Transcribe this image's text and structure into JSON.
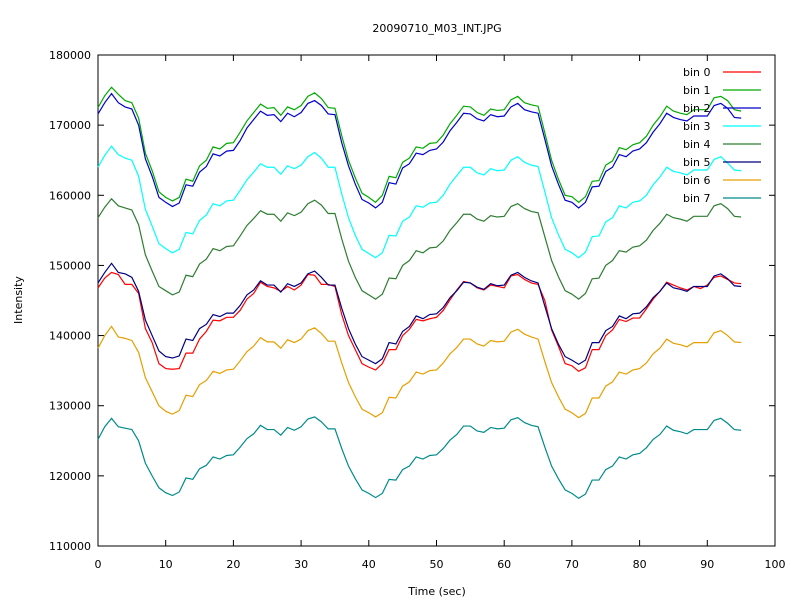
{
  "chart_data": {
    "type": "line",
    "title": "20090710_M03_INT.JPG",
    "xlabel": "Time (sec)",
    "ylabel": "Intensity",
    "xlim": [
      0,
      100
    ],
    "ylim": [
      110000,
      180000
    ],
    "x_ticks": [
      "0",
      "10",
      "20",
      "30",
      "40",
      "50",
      "60",
      "70",
      "80",
      "90",
      "100"
    ],
    "y_ticks": [
      "110000",
      "120000",
      "130000",
      "140000",
      "150000",
      "160000",
      "170000",
      "180000"
    ],
    "grid": false,
    "legend_position": "top-right",
    "x": [
      0,
      1,
      2,
      3,
      4,
      5,
      6,
      7,
      8,
      9,
      10,
      11,
      12,
      13,
      14,
      15,
      16,
      17,
      18,
      19,
      20,
      21,
      22,
      23,
      24,
      25,
      26,
      27,
      28,
      29,
      30,
      31,
      32,
      33,
      34,
      35,
      36,
      37,
      38,
      39,
      40,
      41,
      42,
      43,
      44,
      45,
      46,
      47,
      48,
      49,
      50,
      51,
      52,
      53,
      54,
      55,
      56,
      57,
      58,
      59,
      60,
      61,
      62,
      63,
      64,
      65,
      66,
      67,
      68,
      69,
      70,
      71,
      72,
      73,
      74,
      75,
      76,
      77,
      78,
      79,
      80,
      81,
      82,
      83,
      84,
      85,
      86,
      87,
      88,
      89,
      90,
      91,
      92,
      93,
      94,
      95
    ],
    "series": [
      {
        "name": "bin 0",
        "color": "#ff0000",
        "values": [
          146800,
          148200,
          149000,
          148700,
          147300,
          147300,
          146000,
          141000,
          139000,
          136000,
          135300,
          135200,
          135300,
          137500,
          137500,
          139500,
          140600,
          142200,
          142100,
          142600,
          142600,
          143600,
          145200,
          146000,
          147600,
          147000,
          146800,
          146300,
          147000,
          146500,
          147200,
          148700,
          148600,
          147300,
          147300,
          147000,
          143000,
          140000,
          138000,
          136000,
          135500,
          135100,
          136000,
          138000,
          138000,
          140000,
          140900,
          142300,
          142100,
          142400,
          142600,
          143600,
          145100,
          146500,
          147700,
          147500,
          146800,
          146500,
          147200,
          147000,
          146800,
          148500,
          148700,
          148000,
          147500,
          147300,
          145000,
          140800,
          138500,
          136000,
          135700,
          134900,
          135400,
          138000,
          138000,
          140000,
          140800,
          142300,
          142000,
          142500,
          142500,
          143800,
          145200,
          146300,
          147600,
          147200,
          146800,
          146500,
          147000,
          146700,
          147200,
          148300,
          148500,
          148000,
          147500,
          147400
        ]
      },
      {
        "name": "bin 1",
        "color": "#00aa00",
        "values": [
          172500,
          174200,
          175400,
          174400,
          173500,
          173200,
          171000,
          166000,
          163500,
          160500,
          159700,
          159200,
          159700,
          162300,
          162000,
          164200,
          165000,
          166900,
          166600,
          167400,
          167500,
          169000,
          170600,
          171800,
          173000,
          172400,
          172500,
          171400,
          172600,
          172200,
          172800,
          174100,
          174600,
          173800,
          172500,
          172400,
          168500,
          165000,
          162500,
          160300,
          159700,
          159000,
          160000,
          162700,
          162500,
          164700,
          165300,
          166900,
          166700,
          167400,
          167500,
          168600,
          170200,
          171400,
          172700,
          172600,
          171800,
          171400,
          172300,
          172100,
          172200,
          173600,
          174100,
          173200,
          172900,
          172700,
          168900,
          165000,
          162300,
          160000,
          159800,
          159000,
          159800,
          162000,
          162100,
          164300,
          164900,
          166800,
          166500,
          167200,
          167500,
          168400,
          170000,
          171200,
          172700,
          172000,
          171700,
          171500,
          172200,
          172200,
          172200,
          173900,
          174100,
          173500,
          172200,
          172000
        ]
      },
      {
        "name": "bin 2",
        "color": "#0000cc",
        "values": [
          171600,
          173200,
          174500,
          173200,
          172600,
          172300,
          170000,
          165200,
          162700,
          159700,
          159000,
          158400,
          158900,
          161500,
          161300,
          163300,
          164100,
          165900,
          165600,
          166300,
          166400,
          167800,
          169600,
          170800,
          172000,
          171400,
          171500,
          170500,
          171700,
          171200,
          171800,
          173100,
          173500,
          172800,
          171600,
          171500,
          167500,
          164200,
          161600,
          159400,
          158900,
          158200,
          159000,
          161800,
          161600,
          163900,
          164500,
          166000,
          165800,
          166400,
          166600,
          167600,
          169200,
          170400,
          171700,
          171600,
          170900,
          170600,
          171500,
          171200,
          171300,
          172600,
          173100,
          172200,
          171900,
          171700,
          168000,
          164200,
          161600,
          159300,
          159000,
          158200,
          159000,
          161200,
          161300,
          163400,
          164000,
          165800,
          165500,
          166300,
          166600,
          167500,
          169000,
          170200,
          171700,
          171100,
          170800,
          170600,
          171300,
          171300,
          171300,
          172800,
          173100,
          172400,
          171100,
          171000
        ]
      },
      {
        "name": "bin 3",
        "color": "#00ffff",
        "values": [
          164000,
          165700,
          167000,
          165800,
          165300,
          165000,
          162700,
          158000,
          155600,
          153100,
          152400,
          151800,
          152300,
          154700,
          154500,
          156400,
          157200,
          158800,
          158500,
          159200,
          159300,
          160700,
          162200,
          163300,
          164500,
          164000,
          164000,
          163000,
          164200,
          163800,
          164300,
          165500,
          166100,
          165300,
          164000,
          164000,
          160200,
          156800,
          154300,
          152300,
          151700,
          151100,
          151800,
          154300,
          154200,
          156300,
          156900,
          158500,
          158300,
          158900,
          159000,
          160000,
          161600,
          162800,
          164000,
          164000,
          163200,
          162900,
          163800,
          163500,
          163600,
          165000,
          165500,
          164700,
          164300,
          164100,
          160500,
          156800,
          154400,
          152300,
          151800,
          151100,
          151900,
          154100,
          154200,
          156200,
          156800,
          158500,
          158200,
          159000,
          159200,
          160000,
          161500,
          162600,
          164000,
          163400,
          163200,
          162900,
          163600,
          163600,
          163600,
          165100,
          165500,
          164600,
          163600,
          163500
        ]
      },
      {
        "name": "bin 4",
        "color": "#2e7d32",
        "values": [
          156800,
          158300,
          159500,
          158500,
          158200,
          157900,
          155800,
          151500,
          149200,
          147000,
          146400,
          145800,
          146200,
          148600,
          148400,
          150200,
          150900,
          152400,
          152100,
          152700,
          152800,
          154200,
          155700,
          156700,
          157800,
          157300,
          157300,
          156300,
          157500,
          157100,
          157600,
          158800,
          159300,
          158600,
          157400,
          157400,
          153800,
          150600,
          148300,
          146400,
          145800,
          145200,
          145900,
          148200,
          148100,
          150000,
          150700,
          152100,
          151800,
          152500,
          152600,
          153500,
          155000,
          156100,
          157300,
          157300,
          156600,
          156300,
          157100,
          156900,
          157000,
          158400,
          158800,
          158100,
          157700,
          157500,
          154100,
          150700,
          148400,
          146400,
          145900,
          145200,
          146000,
          148100,
          148200,
          150000,
          150700,
          152100,
          151900,
          152600,
          152800,
          153600,
          155000,
          156000,
          157300,
          156800,
          156600,
          156300,
          157000,
          157000,
          157000,
          158500,
          158800,
          158100,
          157000,
          156900
        ]
      },
      {
        "name": "bin 5",
        "color": "#000080",
        "values": [
          147500,
          149000,
          150300,
          149000,
          148800,
          148300,
          146300,
          142200,
          140000,
          137800,
          137000,
          136800,
          137100,
          139500,
          139300,
          141000,
          141600,
          143000,
          142700,
          143200,
          143200,
          144300,
          145800,
          146500,
          147800,
          147200,
          147200,
          146200,
          147400,
          147000,
          147500,
          148800,
          149200,
          148300,
          147200,
          147200,
          143900,
          141000,
          138800,
          137000,
          136500,
          136000,
          136700,
          139000,
          138800,
          140600,
          141300,
          142800,
          142400,
          143000,
          143100,
          144000,
          145400,
          146400,
          147600,
          147500,
          146900,
          146600,
          147400,
          147100,
          147200,
          148600,
          149000,
          148300,
          147800,
          147500,
          144200,
          141000,
          138800,
          137000,
          136500,
          135900,
          136500,
          139000,
          139000,
          140700,
          141300,
          142800,
          142400,
          143100,
          143200,
          144100,
          145400,
          146300,
          147500,
          146800,
          146600,
          146300,
          147000,
          147000,
          147000,
          148500,
          148800,
          148100,
          147100,
          147000
        ]
      },
      {
        "name": "bin 6",
        "color": "#e69f00",
        "values": [
          138200,
          140000,
          141300,
          139800,
          139600,
          139300,
          137600,
          134000,
          132000,
          130000,
          129200,
          128800,
          129300,
          131500,
          131300,
          133000,
          133600,
          134900,
          134600,
          135100,
          135200,
          136400,
          137700,
          138500,
          139700,
          139100,
          139100,
          138200,
          139400,
          139000,
          139500,
          140700,
          141100,
          140300,
          139200,
          139200,
          136100,
          133300,
          131300,
          129500,
          129000,
          128400,
          129000,
          131200,
          131100,
          132800,
          133400,
          134800,
          134500,
          135000,
          135100,
          136100,
          137400,
          138300,
          139500,
          139500,
          138800,
          138500,
          139300,
          139100,
          139200,
          140500,
          140900,
          140200,
          139800,
          139500,
          136300,
          133300,
          131300,
          129500,
          129000,
          128300,
          128900,
          131100,
          131100,
          132800,
          133400,
          134800,
          134500,
          135100,
          135300,
          136100,
          137400,
          138200,
          139500,
          138900,
          138700,
          138400,
          139000,
          139000,
          139000,
          140400,
          140700,
          140000,
          139100,
          139000
        ]
      },
      {
        "name": "bin 7",
        "color": "#008b8b",
        "values": [
          125200,
          127000,
          128200,
          127000,
          126800,
          126600,
          125000,
          121800,
          120000,
          118300,
          117600,
          117200,
          117700,
          119700,
          119500,
          121000,
          121500,
          122700,
          122400,
          122900,
          123000,
          124100,
          125300,
          126000,
          127200,
          126600,
          126600,
          125800,
          126900,
          126500,
          127000,
          128100,
          128400,
          127700,
          126700,
          126700,
          123900,
          121400,
          119600,
          118000,
          117500,
          116900,
          117500,
          119500,
          119400,
          120900,
          121400,
          122700,
          122400,
          122900,
          123000,
          123900,
          125100,
          125900,
          127100,
          127100,
          126400,
          126200,
          126900,
          126700,
          126800,
          128000,
          128300,
          127600,
          127200,
          127000,
          124100,
          121400,
          119600,
          118000,
          117500,
          116800,
          117400,
          119400,
          119400,
          120900,
          121400,
          122700,
          122400,
          123000,
          123200,
          124000,
          125200,
          125900,
          127100,
          126500,
          126300,
          126000,
          126600,
          126600,
          126600,
          127900,
          128200,
          127500,
          126600,
          126500
        ]
      }
    ]
  }
}
